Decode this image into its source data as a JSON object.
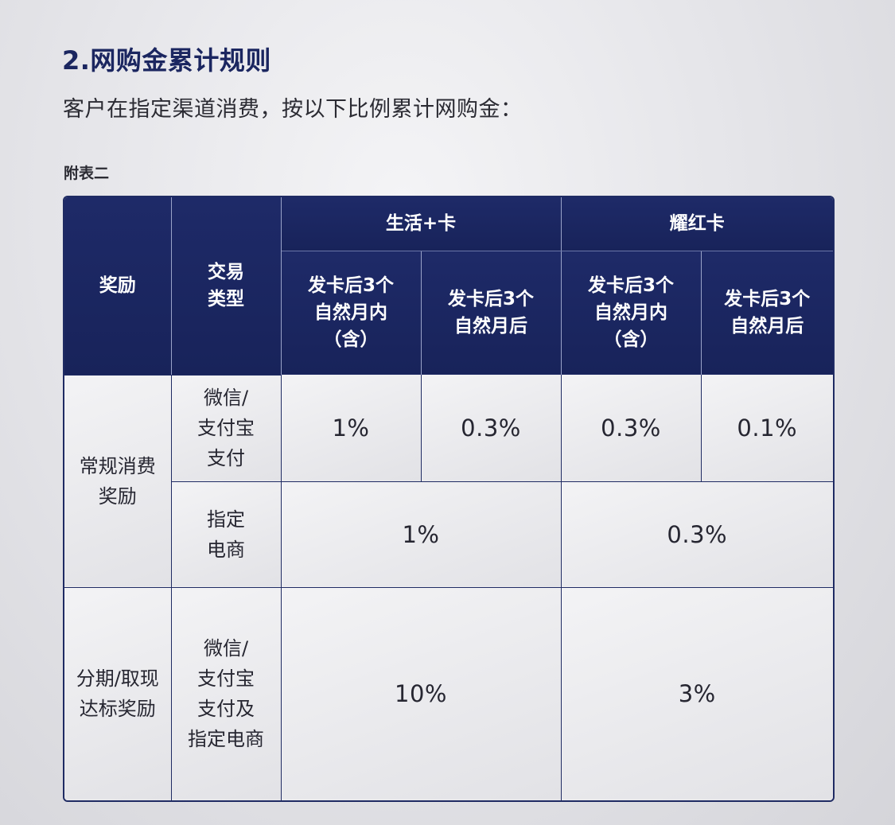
{
  "heading": {
    "title": "2.网购金累计规则",
    "intro": "客户在指定渠道消费，按以下比例累计网购金：",
    "table_caption": "附表二"
  },
  "table": {
    "header": {
      "reward": "奖励",
      "transaction_type": "交易\n类型",
      "group_life": "生活+卡",
      "group_yaohong": "耀红卡",
      "within_3_months": "发卡后3个\n自然月内\n（含）",
      "after_3_months": "发卡后3个\n自然月后"
    },
    "rows": {
      "regular_reward": "常规消费\n奖励",
      "wechat_alipay_pay": "微信/\n支付宝\n支付",
      "designated_ecommerce": "指定\n电商",
      "installment_reward": "分期/取现\n达标奖励",
      "wechat_alipay_and_ecommerce": "微信/\n支付宝\n支付及\n指定电商"
    },
    "values": {
      "regular_wechat_life_within": "1%",
      "regular_wechat_life_after": "0.3%",
      "regular_wechat_yaohong_within": "0.3%",
      "regular_wechat_yaohong_after": "0.1%",
      "regular_ecommerce_life": "1%",
      "regular_ecommerce_yaohong": "0.3%",
      "installment_life": "10%",
      "installment_yaohong": "3%"
    }
  }
}
